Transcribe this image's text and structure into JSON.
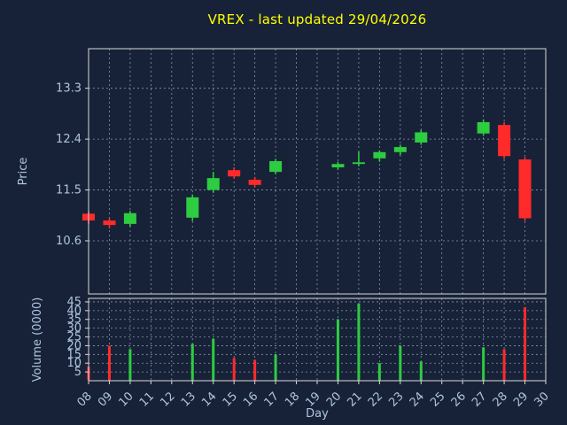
{
  "title": "VREX - last updated 29/04/2026",
  "colors": {
    "background": "#172238",
    "title": "#ffff00",
    "text": "#b0c4de",
    "spine": "#d9d9d9",
    "grid": "#8596a8",
    "up": "#2ecc40",
    "down": "#ff2b2b"
  },
  "chart_data": {
    "type": "candlestick",
    "title": "VREX - last updated 29/04/2026",
    "xlabel": "Day",
    "ylabel_price": "Price",
    "ylabel_volume": "Volume (0000)",
    "x_ticks": [
      "08",
      "09",
      "10",
      "11",
      "12",
      "13",
      "14",
      "15",
      "16",
      "17",
      "18",
      "19",
      "20",
      "21",
      "22",
      "23",
      "24",
      "25",
      "26",
      "27",
      "28",
      "29",
      "30"
    ],
    "price_ticks": [
      10.6,
      11.5,
      12.4,
      13.3
    ],
    "price_ylim": [
      9.66,
      14.0
    ],
    "volume_ticks": [
      5,
      10,
      15,
      20,
      25,
      30,
      35,
      40,
      45
    ],
    "volume_ylim": [
      0,
      47
    ],
    "grid": true,
    "legend": "none",
    "candles": [
      {
        "day": "08",
        "open": 11.08,
        "high": 11.12,
        "low": 10.9,
        "close": 10.96,
        "volume": 8
      },
      {
        "day": "09",
        "open": 10.96,
        "high": 11.0,
        "low": 10.82,
        "close": 10.88,
        "volume": 20
      },
      {
        "day": "10",
        "open": 10.9,
        "high": 11.13,
        "low": 10.85,
        "close": 11.09,
        "volume": 18
      },
      {
        "day": "13",
        "open": 11.01,
        "high": 11.42,
        "low": 10.95,
        "close": 11.37,
        "volume": 21
      },
      {
        "day": "14",
        "open": 11.5,
        "high": 11.82,
        "low": 11.45,
        "close": 11.71,
        "volume": 24
      },
      {
        "day": "15",
        "open": 11.85,
        "high": 11.9,
        "low": 11.7,
        "close": 11.74,
        "volume": 13
      },
      {
        "day": "16",
        "open": 11.68,
        "high": 11.73,
        "low": 11.55,
        "close": 11.59,
        "volume": 12
      },
      {
        "day": "17",
        "open": 11.82,
        "high": 12.05,
        "low": 11.78,
        "close": 12.01,
        "volume": 15
      },
      {
        "day": "20",
        "open": 11.9,
        "high": 12.0,
        "low": 11.86,
        "close": 11.96,
        "volume": 35
      },
      {
        "day": "21",
        "open": 11.96,
        "high": 12.18,
        "low": 11.92,
        "close": 11.99,
        "volume": 44
      },
      {
        "day": "22",
        "open": 12.06,
        "high": 12.2,
        "low": 12.0,
        "close": 12.17,
        "volume": 10
      },
      {
        "day": "23",
        "open": 12.17,
        "high": 12.3,
        "low": 12.12,
        "close": 12.26,
        "volume": 20
      },
      {
        "day": "24",
        "open": 12.34,
        "high": 12.56,
        "low": 12.3,
        "close": 12.52,
        "volume": 11
      },
      {
        "day": "27",
        "open": 12.5,
        "high": 12.75,
        "low": 12.46,
        "close": 12.7,
        "volume": 19
      },
      {
        "day": "28",
        "open": 12.65,
        "high": 12.7,
        "low": 12.05,
        "close": 12.1,
        "volume": 18
      },
      {
        "day": "29",
        "open": 12.04,
        "high": 12.08,
        "low": 10.95,
        "close": 11.0,
        "volume": 42
      }
    ]
  }
}
